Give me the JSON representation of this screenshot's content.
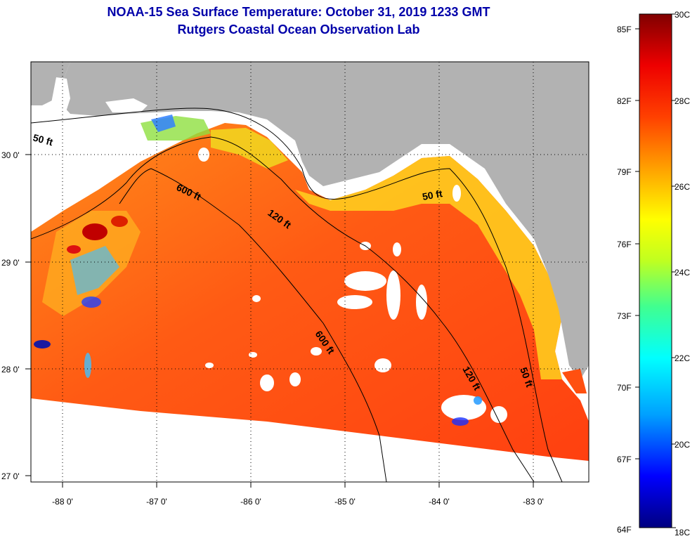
{
  "title": {
    "line1": "NOAA-15 Sea Surface Temperature:  October 31, 2019 1233 GMT",
    "line2": "Rutgers Coastal Ocean Observation Lab"
  },
  "colors": {
    "title": "#0000aa",
    "land": "#b2b2b2",
    "cloud": "#ffffff",
    "scale_stops": [
      "#000080",
      "#0000ff",
      "#00a0ff",
      "#00ffff",
      "#40ff90",
      "#c0ff20",
      "#ffff00",
      "#ffa000",
      "#ff4000",
      "#ee0000",
      "#800000"
    ]
  },
  "map": {
    "lat_labels": [
      "30 0'",
      "29 0'",
      "28 0'",
      "27 0'"
    ],
    "lon_labels": [
      "-88 0'",
      "-87 0'",
      "-86 0'",
      "-85 0'",
      "-84 0'",
      "-83 0'"
    ],
    "depth_labels": [
      "50 ft",
      "600 ft",
      "120 ft",
      "50 ft",
      "600 ft",
      "120 ft",
      "50 ft"
    ]
  },
  "colorbar": {
    "fahrenheit": [
      "85F",
      "82F",
      "79F",
      "76F",
      "73F",
      "70F",
      "67F",
      "64F"
    ],
    "celsius": [
      "30C",
      "28C",
      "26C",
      "24C",
      "22C",
      "20C",
      "18C"
    ]
  }
}
